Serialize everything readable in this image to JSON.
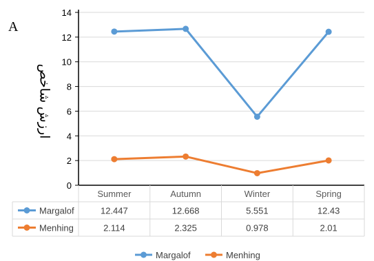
{
  "panel_label": "A",
  "colors": {
    "Margalof": "#5b9bd5",
    "Menhing": "#ed7d31",
    "grid": "#d9d9d9",
    "axis": "#000000"
  },
  "chart_data": {
    "type": "line",
    "title": "",
    "xlabel": "",
    "ylabel": "ارزش شاخص",
    "ylim": [
      0,
      14
    ],
    "yticks": [
      "0",
      "2",
      "4",
      "6",
      "8",
      "10",
      "12",
      "14"
    ],
    "categories": [
      "Summer",
      "Autumn",
      "Winter",
      "Spring"
    ],
    "series": [
      {
        "name": "Margalof",
        "values": [
          12.447,
          12.668,
          5.551,
          12.43
        ],
        "labels": [
          "12.447",
          "12.668",
          "5.551",
          "12.43"
        ]
      },
      {
        "name": "Menhing",
        "values": [
          2.114,
          2.325,
          0.978,
          2.01
        ],
        "labels": [
          "2.114",
          "2.325",
          "0.978",
          "2.01"
        ]
      }
    ],
    "data_table": true,
    "legend": "bottom"
  }
}
